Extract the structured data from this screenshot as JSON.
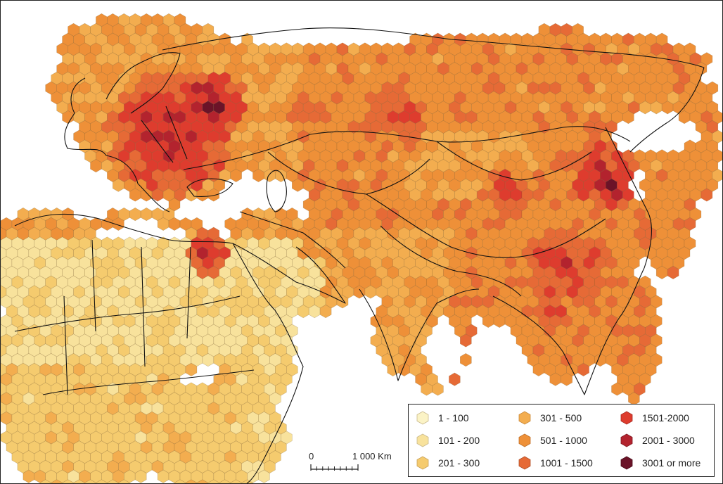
{
  "legend": {
    "items": [
      {
        "label": "1 - 100",
        "color": "#fbf3c6"
      },
      {
        "label": "101 - 200",
        "color": "#f8e29c"
      },
      {
        "label": "201 - 300",
        "color": "#f5cb6e"
      },
      {
        "label": "301 - 500",
        "color": "#f3ad4f"
      },
      {
        "label": "501 - 1000",
        "color": "#ee9038"
      },
      {
        "label": "1001 - 1500",
        "color": "#e66a36"
      },
      {
        "label": "1501-2000",
        "color": "#de3c2e"
      },
      {
        "label": "2001 - 3000",
        "color": "#b3232e"
      },
      {
        "label": "3001 or more",
        "color": "#6b1328"
      }
    ]
  },
  "scale": {
    "zero": "0",
    "distance": "1 000 Km"
  }
}
